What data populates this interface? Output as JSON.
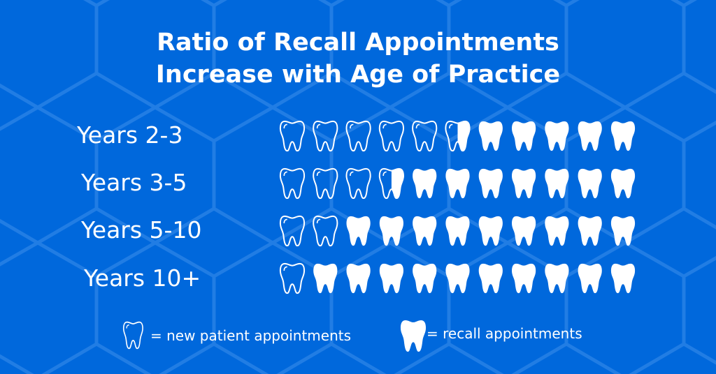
{
  "colors": {
    "background": "#0068dc",
    "hex_lines": "#2f86e8",
    "tooth": "#ffffff"
  },
  "chart_data": {
    "type": "pictogram",
    "title": [
      "Ratio of Recall Appointments",
      "Increase with Age of Practice"
    ],
    "total_icons_per_row": 11,
    "categories": [
      "Years 2-3",
      "Years 3-5",
      "Years 5-10",
      "Years 10+"
    ],
    "series": [
      {
        "name": "new patient appointments",
        "icon": "tooth-outline-icon",
        "values": [
          5.5,
          3.5,
          2,
          1
        ]
      },
      {
        "name": "recall appointments",
        "icon": "tooth-filled-icon",
        "values": [
          5.5,
          7.5,
          9,
          10
        ]
      }
    ],
    "legend": [
      {
        "icon": "tooth-outline-icon",
        "label": "= new patient appointments"
      },
      {
        "icon": "tooth-filled-icon",
        "label": "= recall appointments"
      }
    ],
    "legend_position": "bottom"
  }
}
